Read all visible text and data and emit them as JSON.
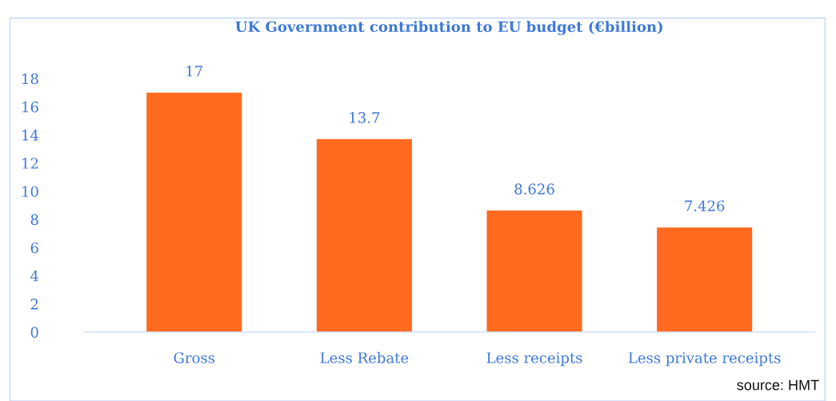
{
  "chart_data": {
    "type": "bar",
    "title": "UK Government contribution to EU budget (€billion)",
    "categories": [
      "Gross",
      "Less Rebate",
      "Less receipts",
      "Less private receipts"
    ],
    "values": [
      17,
      13.7,
      8.626,
      7.426
    ],
    "color": "#ff6a1f",
    "ylim": [
      0,
      18
    ],
    "yticks": [
      0,
      2,
      4,
      6,
      8,
      10,
      12,
      14,
      16,
      18
    ],
    "grid": false,
    "data_labels": true,
    "annotations": [
      "source: HMT"
    ]
  }
}
